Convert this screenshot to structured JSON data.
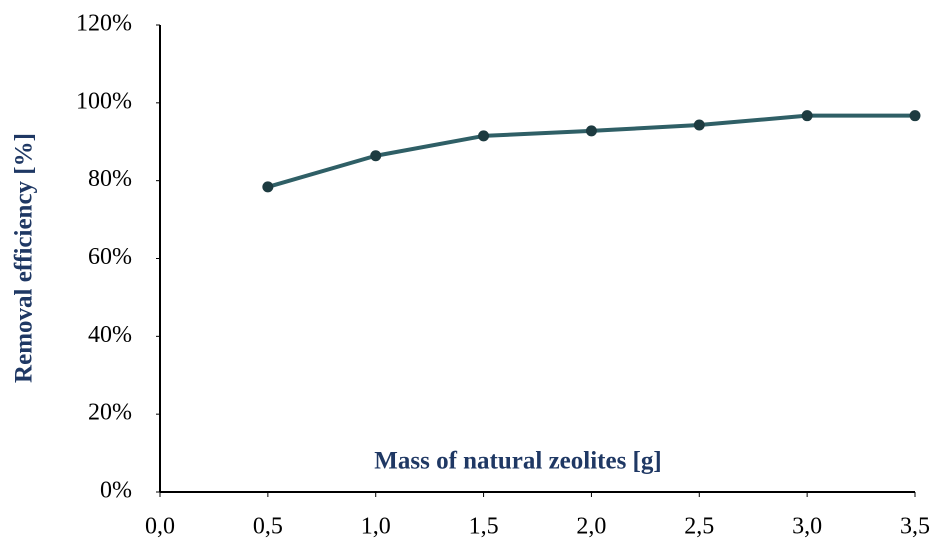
{
  "chart_data": {
    "type": "line",
    "x_label": "Mass of natural zeolites [g]",
    "y_label": "Removal efficiency [%]",
    "x": [
      0.5,
      1.0,
      1.5,
      2.0,
      2.5,
      3.0,
      3.5
    ],
    "values": [
      78.4,
      86.4,
      91.5,
      92.8,
      94.3,
      96.7,
      96.7
    ],
    "color": "#2f5f66",
    "marker_color": "#1d3b40",
    "xlim": [
      0,
      3.5
    ],
    "xticks": [
      {
        "value": 0,
        "label": "0,0"
      },
      {
        "value": 0.5,
        "label": "0,5"
      },
      {
        "value": 1,
        "label": "1,0"
      },
      {
        "value": 1.5,
        "label": "1,5"
      },
      {
        "value": 2,
        "label": "2,0"
      },
      {
        "value": 2.5,
        "label": "2,5"
      },
      {
        "value": 3,
        "label": "3,0"
      },
      {
        "value": 3.5,
        "label": "3,5"
      }
    ],
    "ylim": [
      0,
      120
    ],
    "yticks": [
      {
        "value": 0,
        "label": "0%"
      },
      {
        "value": 20,
        "label": "20%"
      },
      {
        "value": 40,
        "label": "40%"
      },
      {
        "value": 60,
        "label": "60%"
      },
      {
        "value": 80,
        "label": "80%"
      },
      {
        "value": 100,
        "label": "100%"
      },
      {
        "value": 120,
        "label": "120%"
      }
    ],
    "grid": false
  }
}
